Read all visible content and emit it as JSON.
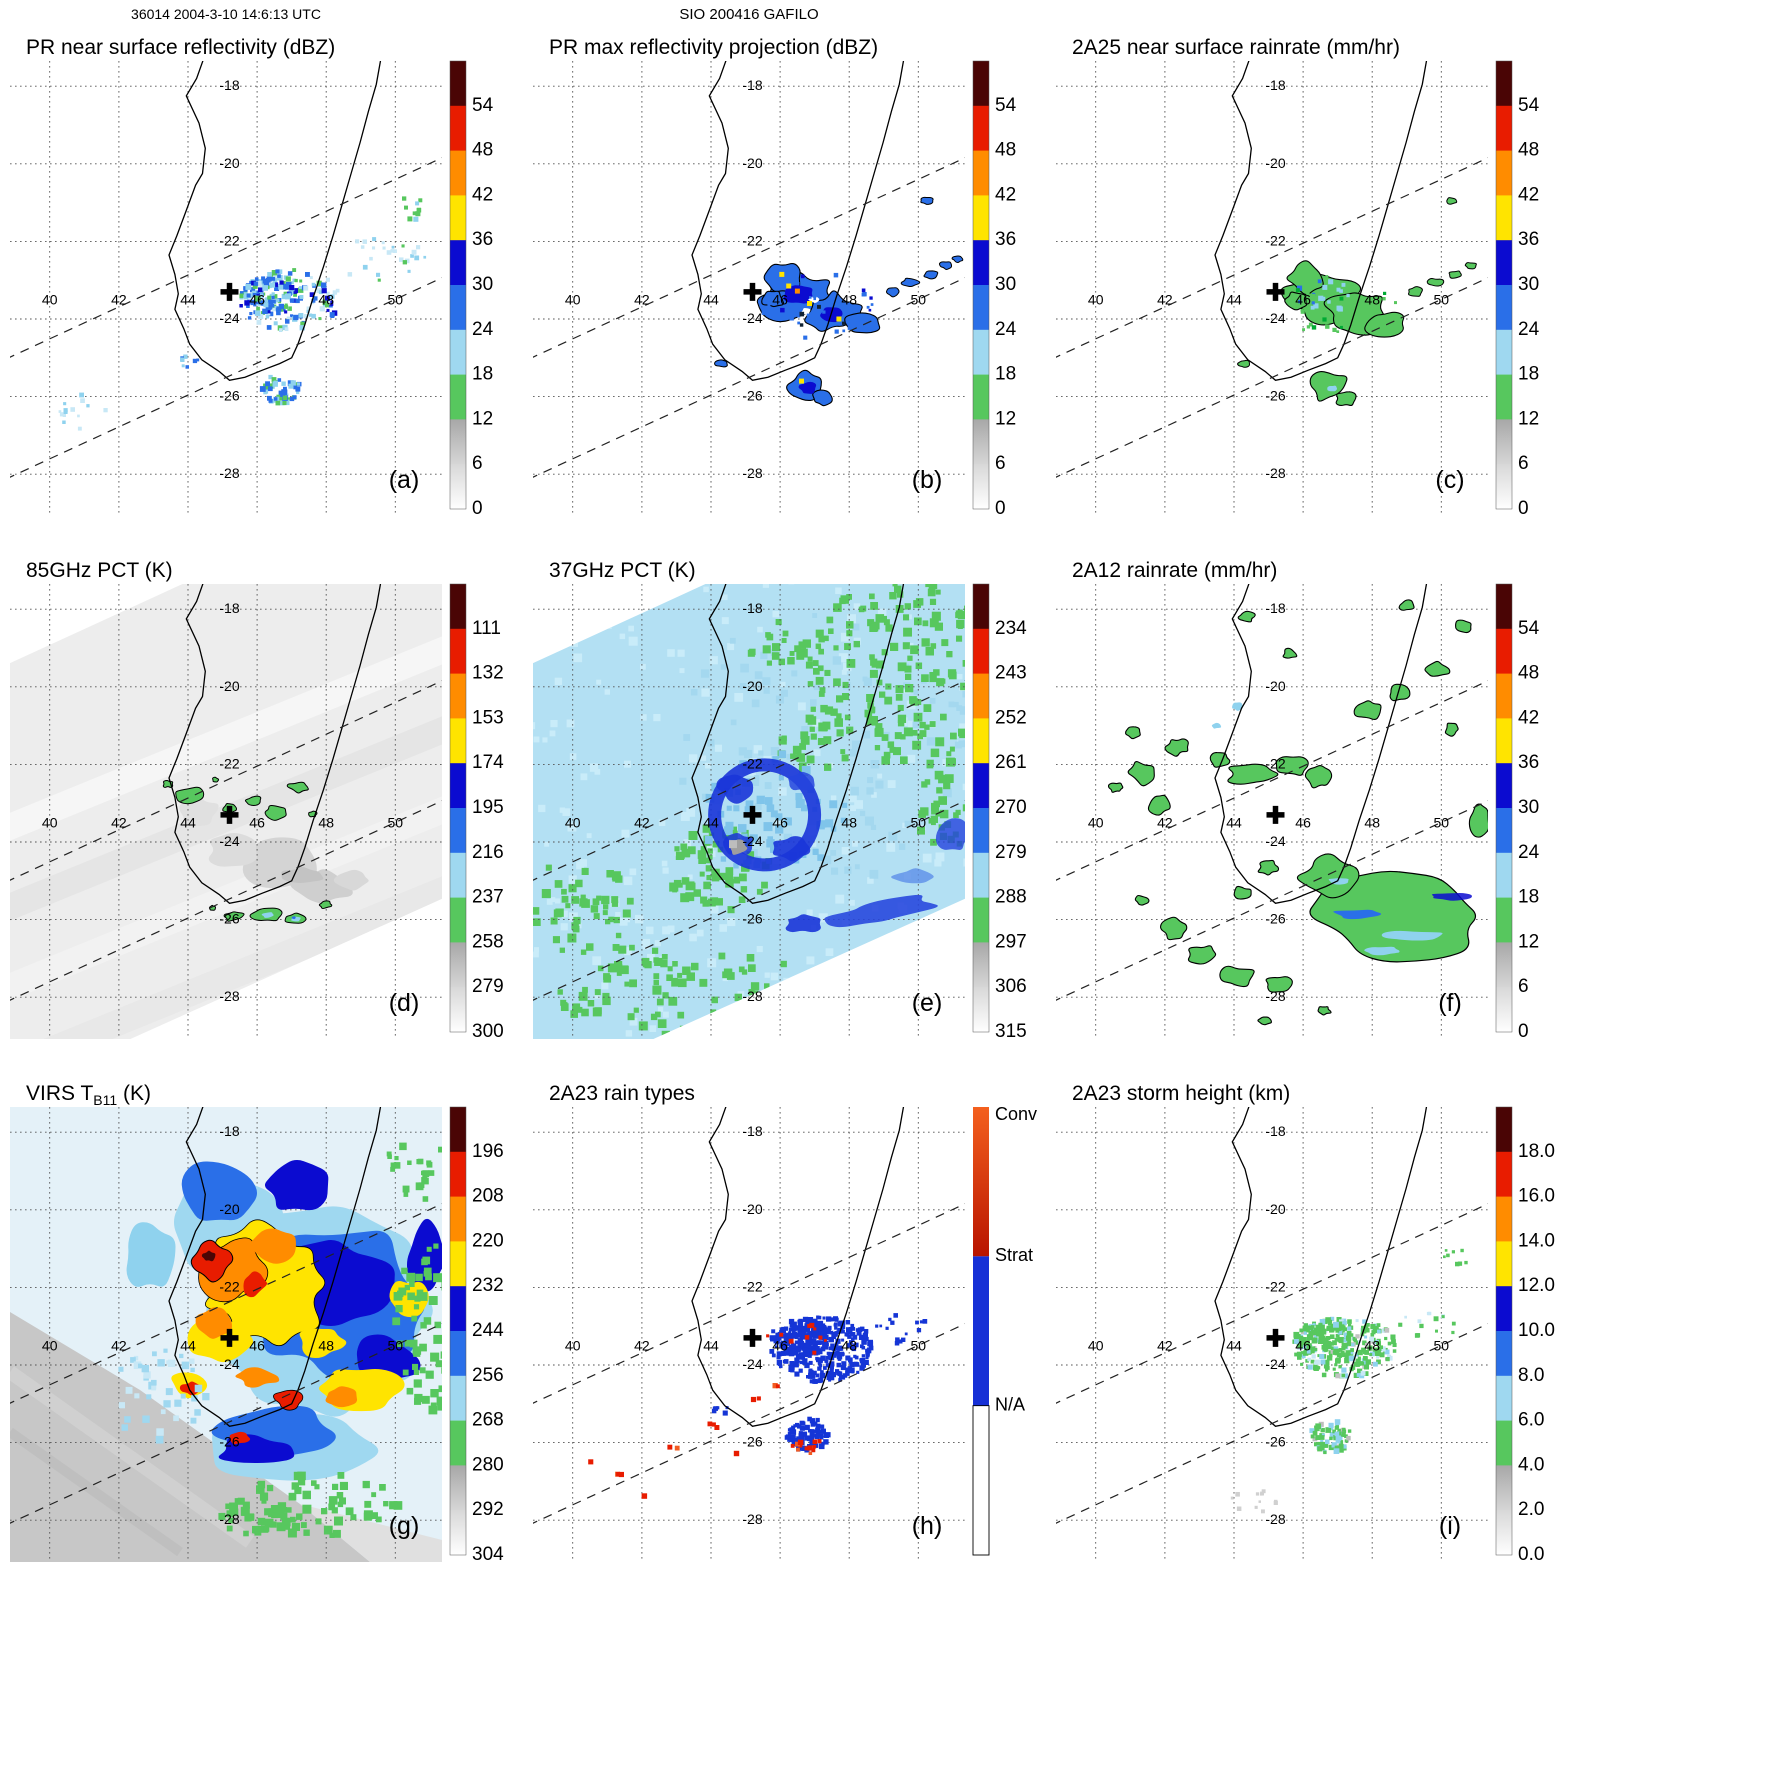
{
  "header": {
    "left_title": "36014 2004-3-10 14:6:13 UTC",
    "center_title": "SIO 200416 GAFILO"
  },
  "axes": {
    "lon_labels": [
      "40",
      "42",
      "44",
      "46",
      "48",
      "50"
    ],
    "lat_labels": [
      "-18",
      "-20",
      "-22",
      "-24",
      "-26",
      "-28"
    ]
  },
  "panels": [
    {
      "id": "a",
      "letter": "(a)",
      "title": "PR near surface reflectivity (dBZ)",
      "colorbar": "spectral",
      "swath": "narrow",
      "colorbar_ticks": [
        "54",
        "48",
        "42",
        "36",
        "30",
        "24",
        "18",
        "12",
        "6",
        "0"
      ]
    },
    {
      "id": "b",
      "letter": "(b)",
      "title": "PR max reflectivity projection (dBZ)",
      "colorbar": "spectral",
      "swath": "narrow",
      "colorbar_ticks": [
        "54",
        "48",
        "42",
        "36",
        "30",
        "24",
        "18",
        "12",
        "6",
        "0"
      ]
    },
    {
      "id": "c",
      "letter": "(c)",
      "title": "2A25 near surface rainrate (mm/hr)",
      "colorbar": "spectral",
      "swath": "narrow",
      "colorbar_ticks": [
        "54",
        "48",
        "42",
        "36",
        "30",
        "24",
        "18",
        "12",
        "6",
        "0"
      ]
    },
    {
      "id": "d",
      "letter": "(d)",
      "title": "85GHz PCT (K)",
      "colorbar": "spectral",
      "swath": "wide",
      "colorbar_ticks": [
        "111",
        "132",
        "153",
        "174",
        "195",
        "216",
        "237",
        "258",
        "279",
        "300"
      ]
    },
    {
      "id": "e",
      "letter": "(e)",
      "title": "37GHz PCT (K)",
      "colorbar": "spectral",
      "swath": "wide",
      "colorbar_ticks": [
        "234",
        "243",
        "252",
        "261",
        "270",
        "279",
        "288",
        "297",
        "306",
        "315"
      ]
    },
    {
      "id": "f",
      "letter": "(f)",
      "title": "2A12 rainrate (mm/hr)",
      "colorbar": "spectral",
      "swath": "none",
      "colorbar_ticks": [
        "54",
        "48",
        "42",
        "36",
        "30",
        "24",
        "18",
        "12",
        "6",
        "0"
      ]
    },
    {
      "id": "g",
      "letter": "(g)",
      "title": "VIRS T",
      "title_sub": "B11",
      "title_suffix": " (K)",
      "colorbar": "spectral",
      "swath": "none",
      "colorbar_ticks": [
        "196",
        "208",
        "220",
        "232",
        "244",
        "256",
        "268",
        "280",
        "292",
        "304"
      ]
    },
    {
      "id": "h",
      "letter": "(h)",
      "title": "2A23 rain types",
      "colorbar": "raintype",
      "swath": "narrow",
      "colorbar_ticks": [
        "Conv",
        "Strat",
        "N/A"
      ]
    },
    {
      "id": "i",
      "letter": "(i)",
      "title": "2A23 storm height (km)",
      "colorbar": "spectral",
      "swath": "narrow",
      "colorbar_ticks": [
        "18.0",
        "16.0",
        "14.0",
        "12.0",
        "10.0",
        "8.0",
        "6.0",
        "4.0",
        "2.0",
        "0.0"
      ]
    }
  ],
  "colors": {
    "dark_red": "#4a0505",
    "red": "#e81c00",
    "orange": "#ff8c00",
    "yellow": "#ffe400",
    "dark_blue": "#0b0bd0",
    "blue": "#2a6fe8",
    "light_blue": "#9fd8f0",
    "green": "#57c75e",
    "stratiform_blue": "#1630d6",
    "convective_red": "#d83a10",
    "gray": "#9a9a9a"
  },
  "chart_data": {
    "type": "heatmap",
    "title": "TRMM multi-instrument overpass panels of tropical cyclone Gafilo near Madagascar",
    "overpass_header": "36014 2004-3-10 14:6:13 UTC",
    "storm_header": "SIO 200416 GAFILO",
    "projection": {
      "lon_ticks": [
        40,
        42,
        44,
        46,
        48,
        50
      ],
      "lat_ticks": [
        -18,
        -20,
        -22,
        -24,
        -26,
        -28
      ],
      "gridlines": "dotted",
      "storm_center_lon": 45.2,
      "storm_center_lat": -23.3,
      "coastline": "southern Madagascar outline in each panel",
      "swath_edges": "dashed diagonal lines running southwest-northeast"
    },
    "panels": [
      {
        "label": "(a)",
        "title": "PR near surface reflectivity (dBZ)",
        "units": "dBZ",
        "colorbar_ticks": [
          54,
          48,
          42,
          36,
          30,
          24,
          18,
          12,
          6,
          0
        ],
        "description": "Speckled 18-30 dBZ echoes inside the PR swath east-southeast of the center near 46-49E, 23-26S, plus a patch near 46.5E 25.8S"
      },
      {
        "label": "(b)",
        "title": "PR max reflectivity projection (dBZ)",
        "units": "dBZ",
        "colorbar_ticks": [
          54,
          48,
          42,
          36,
          30,
          24,
          18,
          12,
          6,
          0
        ],
        "description": "Contiguous black-contoured 24-36 dBZ region with embedded 36-42 dBZ (yellow) cells and small echo fragments along the swath"
      },
      {
        "label": "(c)",
        "title": "2A25 near surface rainrate (mm/hr)",
        "units": "mm/hr",
        "colorbar_ticks": [
          54,
          48,
          42,
          36,
          30,
          24,
          18,
          12,
          6,
          0
        ],
        "description": "Black-contoured light-rain (green, 12-18) areas matching the PR echo region with sparse blue embedded cells"
      },
      {
        "label": "(d)",
        "title": "85GHz PCT (K)",
        "units": "K",
        "colorbar_ticks": [
          111,
          132,
          153,
          174,
          195,
          216,
          237,
          258,
          279,
          300
        ],
        "description": "Wide TMI swath of warm gray PCT (~258-300 K) with scattered black-contoured green (216-237 K) ice-scattering cells north and south of the center"
      },
      {
        "label": "(e)",
        "title": "37GHz PCT (K)",
        "units": "K",
        "colorbar_ticks": [
          234,
          243,
          252,
          261,
          270,
          279,
          288,
          297,
          306,
          315
        ],
        "description": "Light-blue ocean background (~279-288 K) with green (~288-297 K) mottling, a dark-blue (~261-270 K) emission ring around the storm center and a dark-blue band to the southeast"
      },
      {
        "label": "(f)",
        "title": "2A12 rainrate (mm/hr)",
        "units": "mm/hr",
        "colorbar_ticks": [
          54,
          48,
          42,
          36,
          30,
          24,
          18,
          12,
          6,
          0
        ],
        "description": "Green (12-18 mm/hr) black-contoured rainbands spiraling around the center across the full TMI swath, large rain shield southeast with embedded blue streaks"
      },
      {
        "label": "(g)",
        "title": "VIRS TB11 (K)",
        "units": "K",
        "colorbar_ticks": [
          196,
          208,
          220,
          232,
          244,
          256,
          268,
          280,
          292,
          304
        ],
        "description": "Cold cloud shield: yellow/orange (208-232 K) tops with black-contoured red (<208 K) cores northwest of center, broad blue (232-256 K) canopy, green cloud edges, warm gray surface in the southwest corner"
      },
      {
        "label": "(h)",
        "title": "2A23 rain types",
        "units": "category",
        "colorbar_ticks": [
          "Conv",
          "Strat",
          "N/A"
        ],
        "description": "Predominantly stratiform (blue) PR echo with isolated convective (red/orange) pixels in the southern patch and scattered along the southwest swath"
      },
      {
        "label": "(i)",
        "title": "2A23 storm height (km)",
        "units": "km",
        "colorbar_ticks": [
          18.0,
          16.0,
          14.0,
          12.0,
          10.0,
          8.0,
          6.0,
          4.0,
          2.0,
          0.0
        ],
        "description": "Storm heights mostly 4-8 km (green) with 8-12 km (light blue) cells in the same PR swath region and faint gray low echoes southwest"
      }
    ],
    "colorbar_palette_top_to_bottom": [
      "#4a0505",
      "#e81c00",
      "#ff8c00",
      "#ffe400",
      "#0b0bd0",
      "#2a6fe8",
      "#9fd8f0",
      "#57c75e",
      "gray ramp",
      "white ramp"
    ],
    "rain_type_colorbar": {
      "Conv": "orange-red gradient",
      "Strat": "blue",
      "N/A": "white"
    }
  }
}
